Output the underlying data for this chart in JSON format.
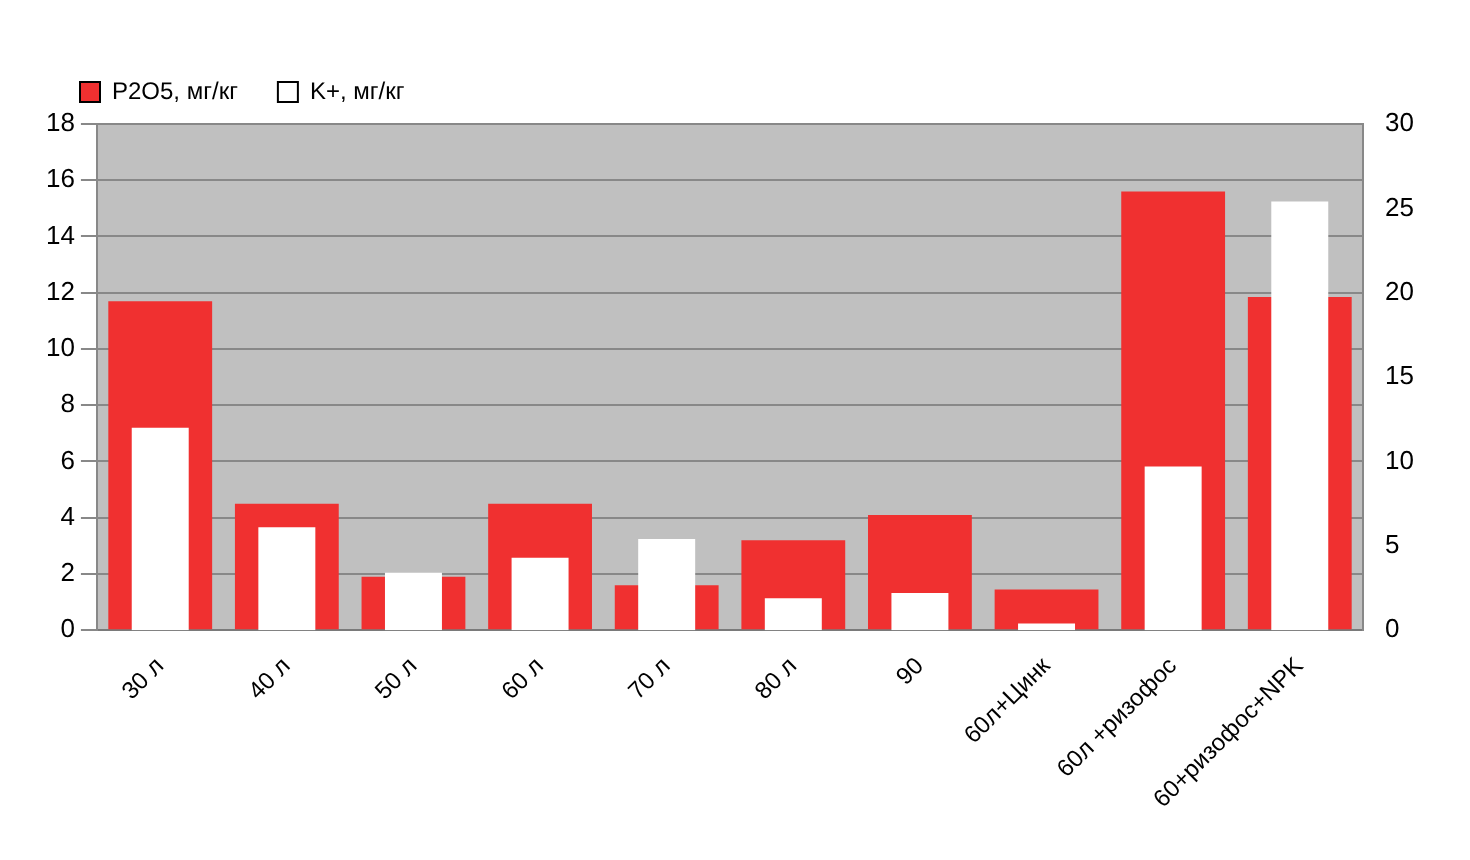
{
  "chart_data": {
    "type": "bar",
    "categories": [
      "30 л",
      "40 л",
      "50 л",
      "60 л",
      "70 л",
      "80 л",
      "90",
      "60л+Цинк",
      "60л +ризофос",
      "60+ризофос+NPK"
    ],
    "series": [
      {
        "name": "P2O5, мг/кг",
        "color": "#f03030",
        "values": [
          11.7,
          4.5,
          1.9,
          4.5,
          1.6,
          3.2,
          4.1,
          1.45,
          15.6,
          11.85
        ]
      },
      {
        "name": "K+, мг/кг",
        "color": "#ffffff",
        "axis": "y2",
        "values": [
          12.0,
          6.1,
          3.4,
          4.3,
          5.4,
          1.9,
          2.2,
          0.4,
          9.7,
          25.4
        ]
      }
    ],
    "ylim": [
      0,
      18
    ],
    "yticks": [
      0,
      2,
      4,
      6,
      8,
      10,
      12,
      14,
      16,
      18
    ],
    "y2lim": [
      0,
      30
    ],
    "y2ticks": [
      0,
      5,
      10,
      15,
      20,
      25,
      30
    ],
    "grid": "y",
    "legend": "top left"
  }
}
